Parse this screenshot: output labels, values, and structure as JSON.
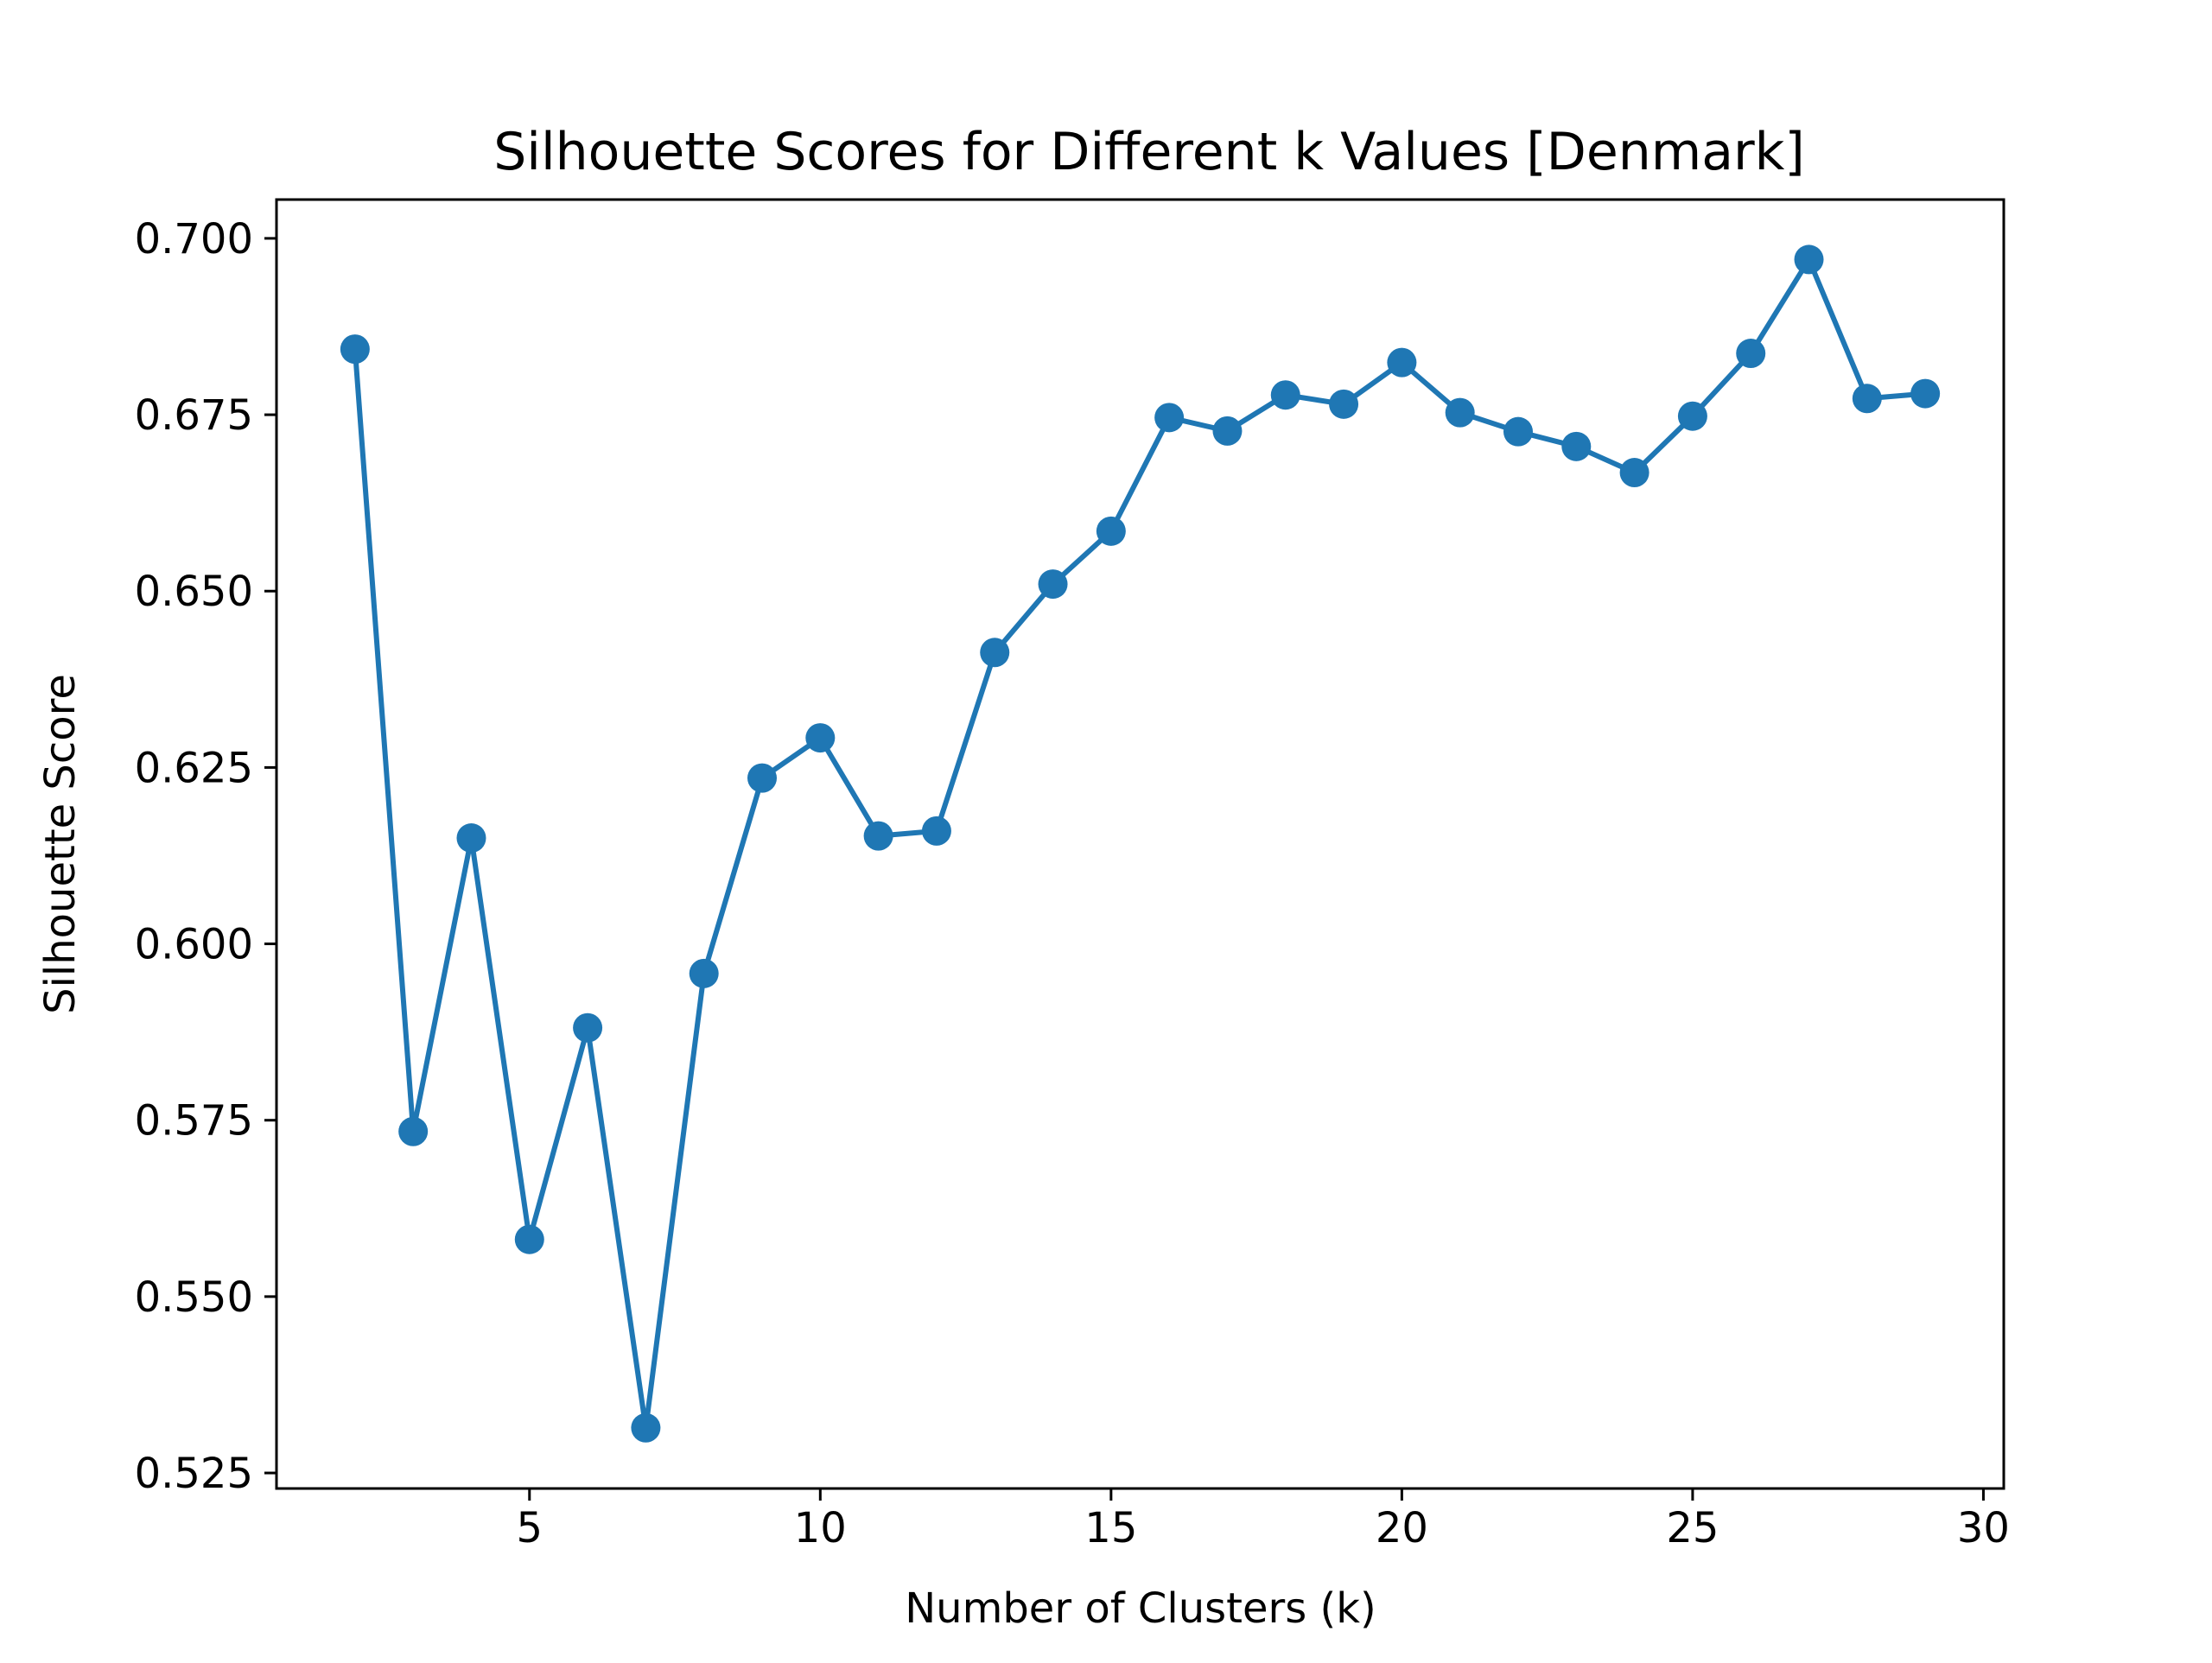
{
  "chart_data": {
    "type": "line",
    "title": "Silhouette Scores for Different k Values [Denmark]",
    "xlabel": "Number of Clusters (k)",
    "ylabel": "Silhouette Score",
    "xlim": [
      0.65,
      30.35
    ],
    "ylim": [
      0.5228,
      0.7055
    ],
    "xticks": [
      5,
      10,
      15,
      20,
      25,
      30
    ],
    "yticks": [
      0.525,
      0.55,
      0.575,
      0.6,
      0.625,
      0.65,
      0.675,
      0.7
    ],
    "yticks_labels": [
      "0.525",
      "0.550",
      "0.575",
      "0.600",
      "0.625",
      "0.650",
      "0.675",
      "0.700"
    ],
    "grid": false,
    "legend": "none",
    "color": "#1f77b4",
    "marker": "circle",
    "series": [
      {
        "x": [
          2,
          3,
          4,
          5,
          6,
          7,
          8,
          9,
          10,
          11,
          12,
          13,
          14,
          15,
          16,
          17,
          18,
          19,
          20,
          21,
          22,
          23,
          24,
          25,
          26,
          27,
          28,
          29
        ],
        "values": [
          0.6843,
          0.5734,
          0.615,
          0.5581,
          0.5881,
          0.5314,
          0.5958,
          0.6235,
          0.6292,
          0.6153,
          0.616,
          0.6413,
          0.651,
          0.6585,
          0.6746,
          0.6727,
          0.6778,
          0.6765,
          0.6824,
          0.6753,
          0.6726,
          0.6705,
          0.6668,
          0.6748,
          0.6837,
          0.697,
          0.6773,
          0.678
        ]
      }
    ]
  }
}
